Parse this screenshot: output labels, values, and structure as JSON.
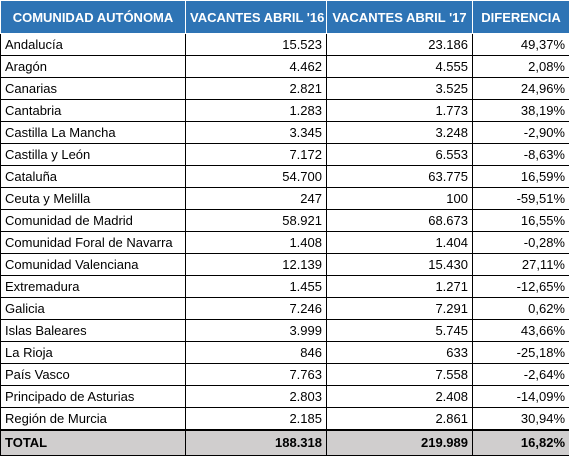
{
  "table": {
    "headers": [
      "COMUNIDAD AUTÓNOMA",
      "VACANTES ABRIL '16",
      "VACANTES ABRIL '17",
      "DIFERENCIA"
    ],
    "rows": [
      [
        "Andalucía",
        "15.523",
        "23.186",
        "49,37%"
      ],
      [
        "Aragón",
        "4.462",
        "4.555",
        "2,08%"
      ],
      [
        "Canarias",
        "2.821",
        "3.525",
        "24,96%"
      ],
      [
        "Cantabria",
        "1.283",
        "1.773",
        "38,19%"
      ],
      [
        "Castilla La Mancha",
        "3.345",
        "3.248",
        "-2,90%"
      ],
      [
        "Castilla y León",
        "7.172",
        "6.553",
        "-8,63%"
      ],
      [
        "Cataluña",
        "54.700",
        "63.775",
        "16,59%"
      ],
      [
        "Ceuta y Melilla",
        "247",
        "100",
        "-59,51%"
      ],
      [
        "Comunidad de Madrid",
        "58.921",
        "68.673",
        "16,55%"
      ],
      [
        "Comunidad Foral de Navarra",
        "1.408",
        "1.404",
        "-0,28%"
      ],
      [
        "Comunidad Valenciana",
        "12.139",
        "15.430",
        "27,11%"
      ],
      [
        "Extremadura",
        "1.455",
        "1.271",
        "-12,65%"
      ],
      [
        "Galicia",
        "7.246",
        "7.291",
        "0,62%"
      ],
      [
        "Islas Baleares",
        "3.999",
        "5.745",
        "43,66%"
      ],
      [
        "La Rioja",
        "846",
        "633",
        "-25,18%"
      ],
      [
        "País Vasco",
        "7.763",
        "7.558",
        "-2,64%"
      ],
      [
        "Principado de Asturias",
        "2.803",
        "2.408",
        "-14,09%"
      ],
      [
        "Región de Murcia",
        "2.185",
        "2.861",
        "30,94%"
      ]
    ],
    "total": [
      "TOTAL",
      "188.318",
      "219.989",
      "16,82%"
    ]
  },
  "colors": {
    "header_background": "#2e74b5",
    "header_text": "#ffffff",
    "total_background": "#d0cece"
  }
}
